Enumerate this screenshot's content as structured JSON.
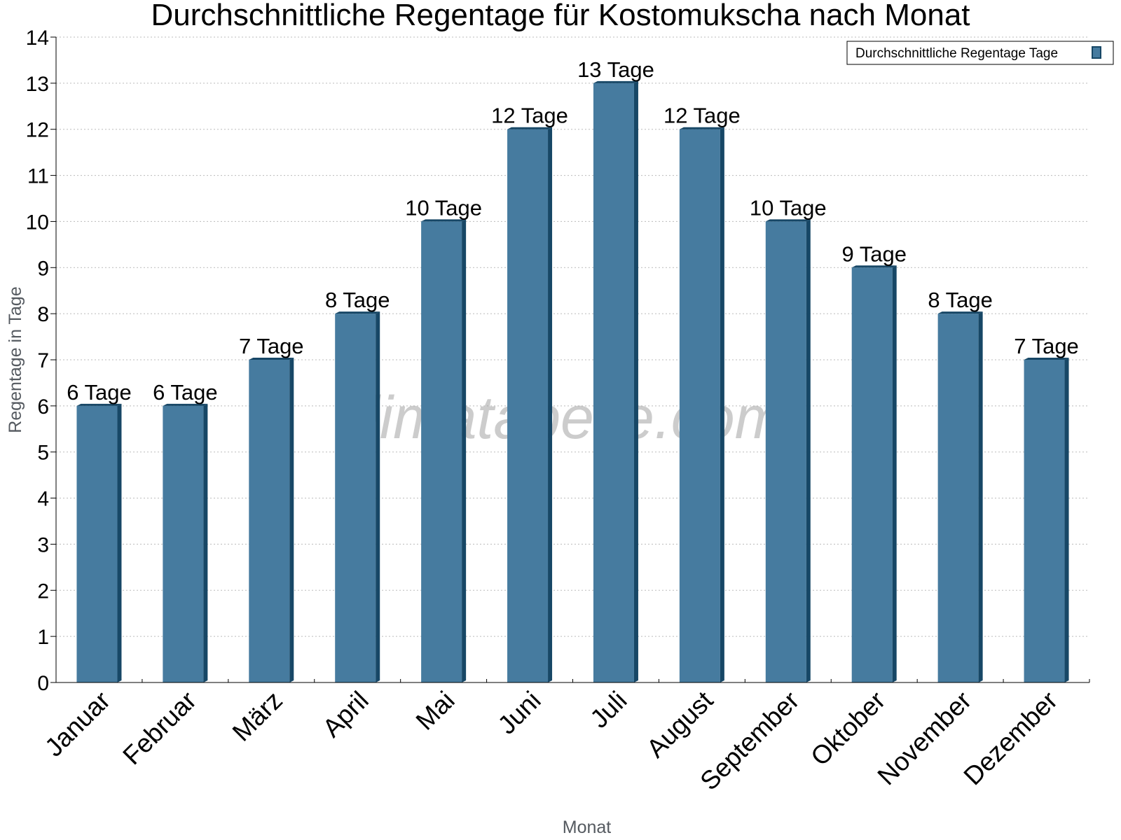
{
  "watermark": "klimatabelle.com",
  "colors": {
    "bar_front": "#467b9f",
    "bar_side": "#174766",
    "bar_top": "#174766",
    "grid": "#bbbbbb",
    "axis": "#000000"
  },
  "chart_data": {
    "type": "bar",
    "title": "Durchschnittliche Regentage für Kostomukscha nach Monat",
    "xlabel": "Monat",
    "ylabel": "Regentage in Tage",
    "categories": [
      "Januar",
      "Februar",
      "März",
      "April",
      "Mai",
      "Juni",
      "Juli",
      "August",
      "September",
      "Oktober",
      "November",
      "Dezember"
    ],
    "series": [
      {
        "name": "Durchschnittliche Regentage Tage",
        "values": [
          6,
          6,
          7,
          8,
          10,
          12,
          13,
          12,
          10,
          9,
          8,
          7
        ],
        "data_labels": [
          "6 Tage",
          "6 Tage",
          "7 Tage",
          "8 Tage",
          "10 Tage",
          "12 Tage",
          "13 Tage",
          "12 Tage",
          "10 Tage",
          "9 Tage",
          "8 Tage",
          "7 Tage"
        ]
      }
    ],
    "yticks": [
      0,
      1,
      2,
      3,
      4,
      5,
      6,
      7,
      8,
      9,
      10,
      11,
      12,
      13,
      14
    ],
    "ylim": [
      0,
      14
    ],
    "grid": true,
    "legend_position": "top-right"
  }
}
